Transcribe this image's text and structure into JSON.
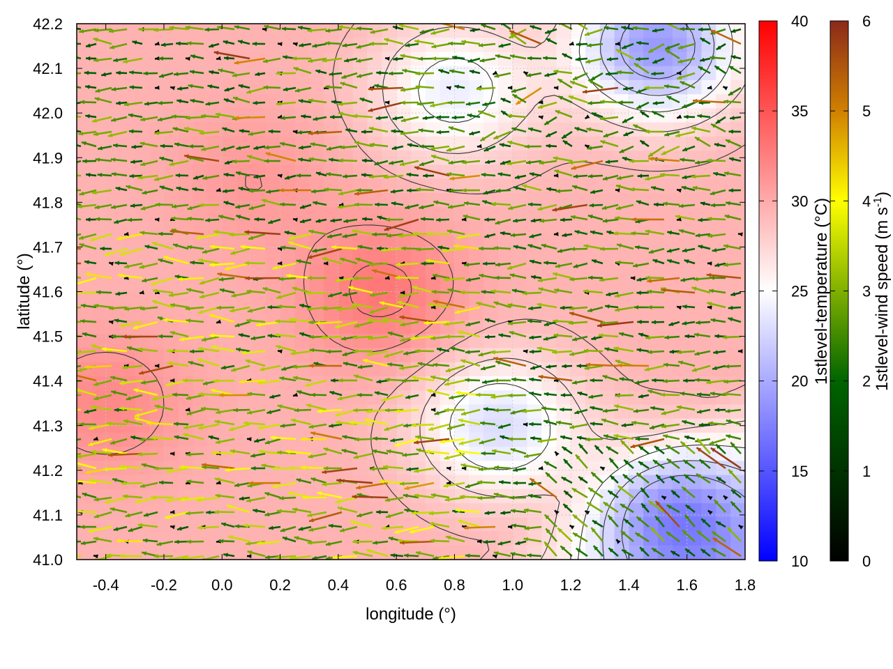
{
  "chart_data": {
    "type": "heatmap",
    "xlabel": "longitude (°)",
    "ylabel": "latitude (°)",
    "xlim": [
      -0.5,
      1.8
    ],
    "ylim": [
      41.0,
      42.2
    ],
    "x_ticks": [
      "-0.4",
      "-0.2",
      "0.0",
      "0.2",
      "0.4",
      "0.6",
      "0.8",
      "1.0",
      "1.2",
      "1.4",
      "1.6",
      "1.8"
    ],
    "y_ticks": [
      "41.0",
      "41.1",
      "41.2",
      "41.3",
      "41.4",
      "41.5",
      "41.6",
      "41.7",
      "41.8",
      "41.9",
      "42.0",
      "42.1",
      "42.2"
    ],
    "layers": [
      {
        "kind": "filled-field",
        "colorbar_label": "1stlevel-temperature (°C)",
        "range": [
          10,
          40
        ],
        "colorbar_ticks": [
          "10",
          "15",
          "20",
          "25",
          "30",
          "35",
          "40"
        ],
        "colors": {
          "low": "#0000ff",
          "mid": "#ffffff",
          "high": "#ff0000"
        }
      },
      {
        "kind": "vector-field",
        "colorbar_label_main": "1stlevel-wind speed (m s",
        "colorbar_label_sup": "-1",
        "colorbar_label_end": ")",
        "range": [
          0,
          6
        ],
        "colorbar_ticks": [
          "0",
          "1",
          "2",
          "3",
          "4",
          "5",
          "6"
        ],
        "colors": {
          "0": "#000000",
          "2": "#006400",
          "3": "#80b000",
          "4": "#ffff00",
          "5": "#d08000",
          "6": "#8b2a1a"
        },
        "dominant_direction": "westward"
      },
      {
        "kind": "contour-lines",
        "color": "#333333"
      }
    ],
    "temperature_features": [
      {
        "lon": 0.55,
        "lat": 41.6,
        "value": 33
      },
      {
        "lon": -0.4,
        "lat": 41.35,
        "value": 32
      },
      {
        "lon": 0.1,
        "lat": 41.85,
        "value": 31
      },
      {
        "lon": 1.5,
        "lat": 42.15,
        "value": 19
      },
      {
        "lon": 1.55,
        "lat": 41.1,
        "value": 21
      },
      {
        "lon": 0.95,
        "lat": 41.3,
        "value": 23
      },
      {
        "lon": 0.8,
        "lat": 42.05,
        "value": 24
      }
    ]
  }
}
